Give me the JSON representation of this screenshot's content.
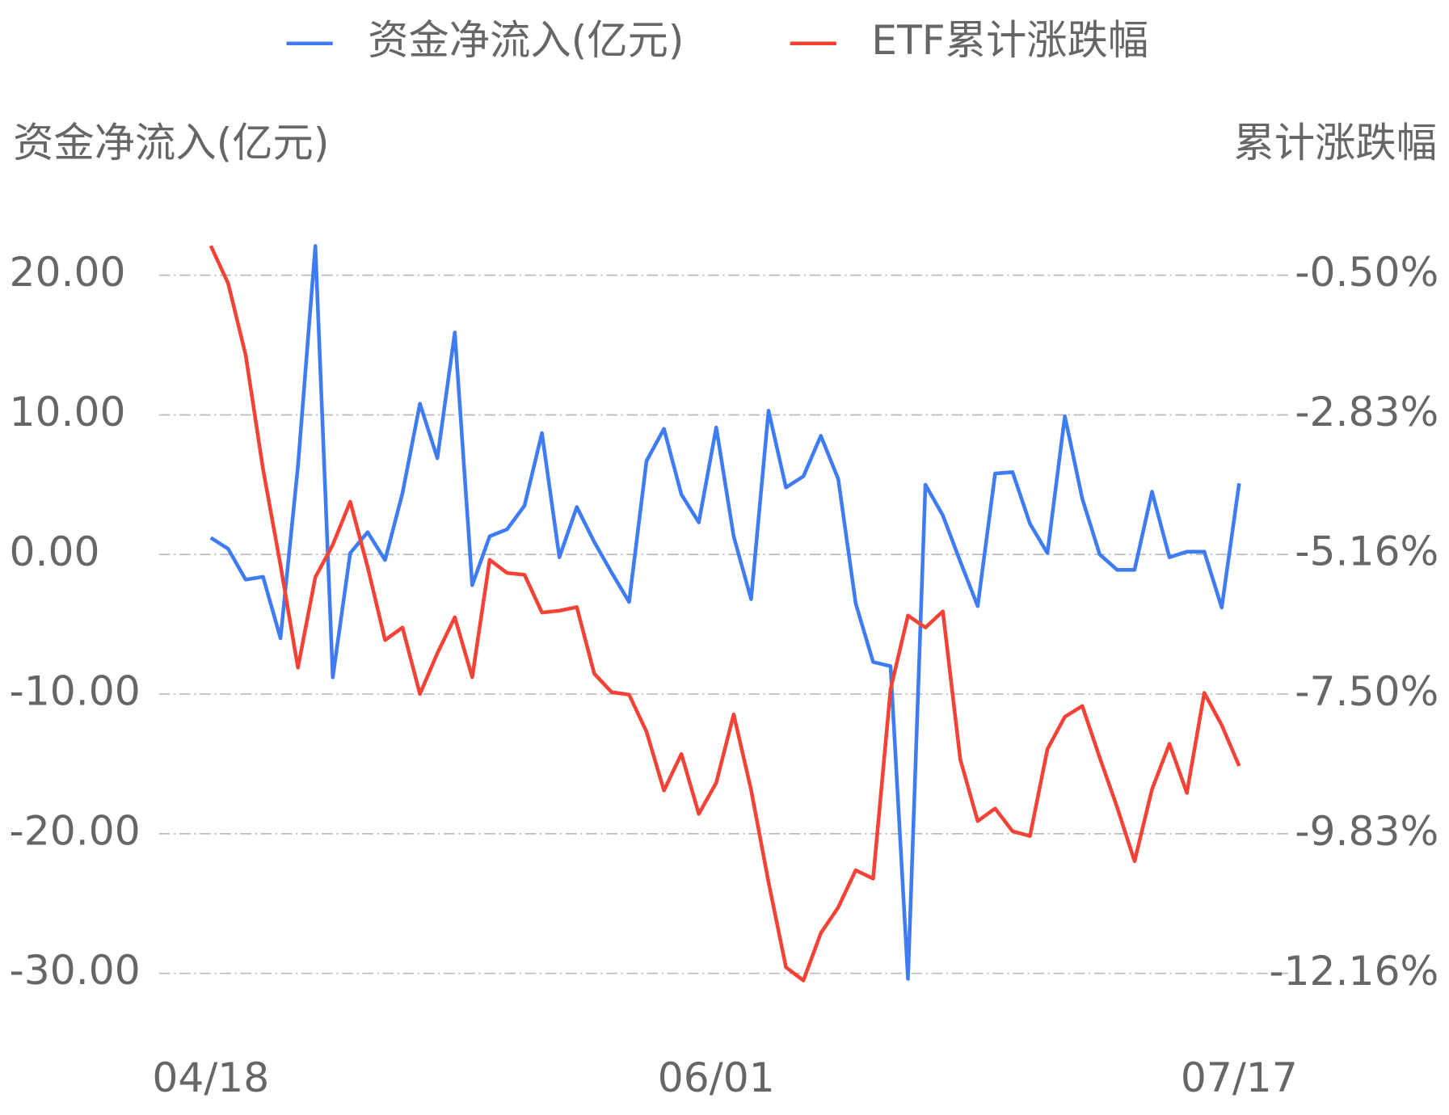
{
  "chart_data": {
    "type": "line",
    "y_label": "资金净流入(亿元)",
    "y2_label": "累计涨跌幅",
    "categories": [
      "04/18",
      null,
      null,
      null,
      null,
      null,
      null,
      null,
      null,
      null,
      null,
      null,
      null,
      null,
      null,
      null,
      null,
      null,
      null,
      null,
      null,
      null,
      null,
      null,
      null,
      null,
      null,
      null,
      null,
      "06/01",
      null,
      null,
      null,
      null,
      null,
      null,
      null,
      null,
      null,
      null,
      null,
      null,
      null,
      null,
      null,
      null,
      null,
      null,
      null,
      null,
      null,
      null,
      null,
      null,
      null,
      null,
      null,
      null,
      null,
      "07/17"
    ],
    "series": [
      {
        "name": "资金净流入(亿元)",
        "color": "#3f7cf4",
        "axis": "y",
        "values": [
          1.2,
          0.4,
          -1.8,
          -1.6,
          -6.0,
          6.3,
          22.1,
          -8.8,
          0.1,
          1.6,
          -0.4,
          4.4,
          10.8,
          6.9,
          15.9,
          -2.2,
          1.3,
          1.8,
          3.5,
          8.7,
          -0.2,
          3.4,
          0.9,
          -1.3,
          -3.4,
          6.7,
          9.0,
          4.3,
          2.3,
          9.1,
          1.3,
          -3.2,
          10.3,
          4.8,
          5.6,
          8.5,
          5.4,
          -3.5,
          -7.7,
          -8.0,
          -30.4,
          5.0,
          2.8,
          -0.5,
          -3.7,
          5.8,
          5.9,
          2.2,
          0.1,
          9.9,
          4.0,
          0.0,
          -1.1,
          -1.1,
          4.5,
          -0.2,
          0.2,
          0.2,
          -3.8,
          5.1
        ]
      },
      {
        "name": "ETF累计涨跌幅",
        "color": "#f44336",
        "axis": "y2",
        "values": [
          -0.01,
          -0.64,
          -1.83,
          -3.74,
          -5.34,
          -7.05,
          -5.54,
          -5.0,
          -4.28,
          -5.37,
          -6.59,
          -6.38,
          -7.49,
          -6.81,
          -6.21,
          -7.21,
          -5.25,
          -5.47,
          -5.5,
          -6.13,
          -6.1,
          -6.04,
          -7.15,
          -7.46,
          -7.5,
          -8.12,
          -9.1,
          -8.49,
          -9.49,
          -8.97,
          -7.83,
          -9.09,
          -10.63,
          -12.05,
          -12.27,
          -11.48,
          -11.05,
          -10.43,
          -10.57,
          -7.41,
          -6.18,
          -6.38,
          -6.11,
          -8.58,
          -9.61,
          -9.4,
          -9.78,
          -9.86,
          -8.41,
          -7.87,
          -7.69,
          -8.55,
          -9.38,
          -10.28,
          -9.08,
          -8.32,
          -9.14,
          -7.47,
          -8.01,
          -8.69
        ]
      }
    ],
    "ylim": [
      -33,
      24
    ],
    "yticks": [
      {
        "value": 20,
        "label": "20.00"
      },
      {
        "value": 10,
        "label": "10.00"
      },
      {
        "value": 0,
        "label": "0.00"
      },
      {
        "value": -10,
        "label": "-10.00"
      },
      {
        "value": -20,
        "label": "-20.00"
      },
      {
        "value": -30,
        "label": "-30.00"
      }
    ],
    "y2lim": [
      -12.85,
      0.43
    ],
    "y2ticks": [
      {
        "value": -0.5,
        "label": "-0.50%"
      },
      {
        "value": -2.83,
        "label": "-2.83%"
      },
      {
        "value": -5.16,
        "label": "-5.16%"
      },
      {
        "value": -7.5,
        "label": "-7.50%"
      },
      {
        "value": -9.83,
        "label": "-9.83%"
      },
      {
        "value": -12.16,
        "label": "-12.16%"
      }
    ],
    "grid": true
  }
}
